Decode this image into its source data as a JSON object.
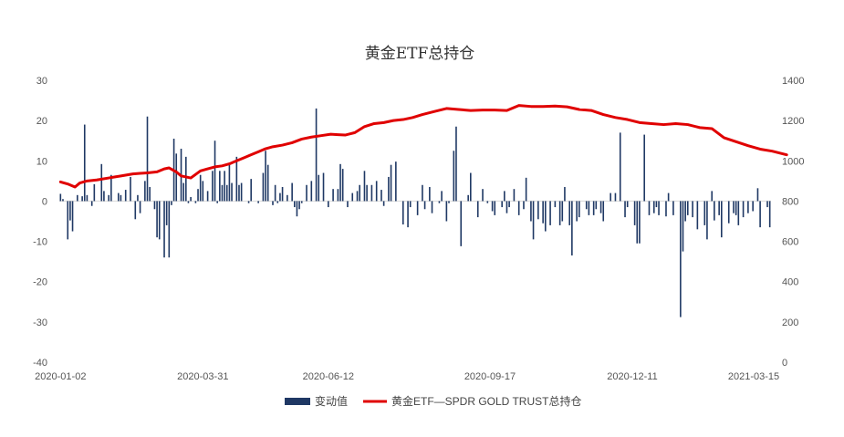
{
  "chart_data": {
    "type": "bar+line",
    "title": "黄金ETF总持仓",
    "xlabel": "",
    "ylabel_left": "",
    "ylabel_right": "",
    "x_tick_labels": [
      "2020-01-02",
      "2020-03-31",
      "2020-06-12",
      "2020-09-17",
      "2020-12-11",
      "2021-03-15"
    ],
    "x_tick_index": [
      0,
      59,
      111,
      178,
      237,
      301
    ],
    "y_left": {
      "min": -40,
      "max": 30,
      "ticks": [
        30,
        20,
        10,
        0,
        -10,
        -20,
        -30,
        -40
      ]
    },
    "y_right": {
      "min": 0,
      "max": 1400,
      "ticks": [
        1400,
        1200,
        1000,
        800,
        600,
        400,
        200,
        0
      ]
    },
    "grid": false,
    "legend_position": "bottom",
    "legend": [
      {
        "name": "变动值",
        "type": "bar",
        "color": "#1f3864"
      },
      {
        "name": "黄金ETF—SPDR GOLD TRUST总持仓",
        "type": "line",
        "color": "#e00000"
      }
    ],
    "series": [
      {
        "name": "变动值",
        "axis": "left",
        "values": [
          1.8,
          0.5,
          0,
          -9.5,
          -4.8,
          -7.5,
          0,
          1.5,
          0,
          1.2,
          19,
          1.5,
          0,
          -1.2,
          4.2,
          0,
          0,
          9.2,
          2.5,
          0,
          1.5,
          6.5,
          0,
          0,
          2,
          1.5,
          0,
          2.8,
          0,
          6,
          0,
          -4.5,
          1.5,
          -3,
          0,
          5,
          21,
          3.5,
          0,
          -2,
          -9,
          -9.5,
          0,
          -14,
          -6,
          -14,
          -1,
          15.5,
          11.8,
          0,
          13,
          4.5,
          11,
          -0.5,
          1,
          0,
          -0.5,
          3,
          6.5,
          5,
          0,
          2.5,
          0,
          7.5,
          15,
          -0.5,
          7.5,
          4,
          7.5,
          4,
          9,
          4.5,
          0,
          11,
          4,
          4.5,
          0,
          0,
          -0.5,
          5.5,
          0,
          0,
          -0.5,
          0,
          7,
          12.5,
          9,
          0,
          -1,
          4,
          -0.5,
          2,
          3.5,
          0,
          1.5,
          0,
          4.5,
          -1.5,
          -3.8,
          -2,
          -0.5,
          0,
          4,
          0,
          5,
          0,
          23,
          6.5,
          0,
          7,
          0,
          -1.5,
          0,
          3,
          0,
          3,
          9.2,
          8,
          0,
          -1.5,
          0,
          2,
          0,
          2.5,
          4,
          0,
          7.5,
          4,
          0,
          4,
          0,
          5,
          0,
          2.8,
          -1.2,
          0,
          6,
          9,
          0,
          9.8,
          0,
          0,
          -5.8,
          0,
          -6.5,
          -1.5,
          0,
          0,
          -3.5,
          0,
          4,
          -2,
          0,
          3.5,
          -3,
          0,
          0,
          -0.5,
          2.5,
          0,
          -5,
          -0.5,
          0,
          12.5,
          18.5,
          0,
          -11.2,
          0,
          0,
          1.5,
          7,
          0,
          0,
          -4,
          0,
          3,
          0,
          -0.5,
          0,
          -2.5,
          -3.5,
          0,
          0,
          -1.5,
          2.5,
          -3,
          -1.5,
          0,
          3,
          0,
          -3.5,
          0,
          -2,
          5.8,
          0,
          -5,
          -9.5,
          0,
          -4.5,
          0,
          -5.5,
          -7.5,
          0,
          -6,
          0,
          -1.5,
          0,
          -6,
          -5,
          3.5,
          0,
          -6,
          -13.5,
          0,
          -5,
          -4,
          0,
          0,
          -2,
          -3.5,
          0,
          -3.5,
          -2,
          0,
          -3,
          -5,
          0,
          0,
          2,
          0,
          2,
          0,
          17,
          0,
          -4,
          -1.5,
          0,
          0,
          -6,
          -10.5,
          -10.5,
          0,
          16.5,
          0,
          -3.5,
          0,
          -3,
          -1.5,
          -3.5,
          0,
          0,
          -3.8,
          2,
          0,
          -3.5,
          0,
          0,
          -28.8,
          -12.5,
          -5,
          -3.5,
          0,
          -4,
          0,
          -7,
          0,
          0,
          -6,
          -9.5,
          0,
          2.5,
          -4.8,
          0,
          -3.5,
          -9,
          0,
          0,
          -5.5,
          0,
          -3,
          -3.5,
          -6,
          0,
          -4,
          0,
          -3,
          0,
          -2.5,
          0,
          3.2,
          -6.5,
          0,
          0,
          -1.5,
          -6.5
        ]
      },
      {
        "name": "黄金ETF—SPDR GOLD TRUST总持仓",
        "axis": "right",
        "x": [
          0,
          3,
          6,
          8,
          11,
          15,
          20,
          25,
          30,
          33,
          36,
          40,
          43,
          45,
          48,
          50,
          54,
          58,
          61,
          64,
          67,
          70,
          73,
          76,
          79,
          82,
          85,
          88,
          92,
          96,
          100,
          104,
          108,
          112,
          115,
          118,
          122,
          126,
          130,
          134,
          138,
          142,
          146,
          150,
          155,
          160,
          165,
          170,
          175,
          180,
          185,
          190,
          195,
          200,
          205,
          210,
          215,
          220,
          225,
          230,
          235,
          240,
          245,
          250,
          255,
          260,
          265,
          270,
          275,
          280,
          285,
          290,
          295,
          301
        ],
        "values": [
          895,
          885,
          870,
          890,
          900,
          905,
          915,
          925,
          935,
          938,
          940,
          945,
          960,
          965,
          945,
          925,
          915,
          950,
          960,
          970,
          975,
          985,
          1000,
          1015,
          1030,
          1045,
          1060,
          1070,
          1078,
          1090,
          1108,
          1118,
          1125,
          1132,
          1130,
          1128,
          1140,
          1170,
          1185,
          1190,
          1200,
          1205,
          1215,
          1230,
          1245,
          1260,
          1255,
          1250,
          1252,
          1252,
          1250,
          1275,
          1270,
          1270,
          1272,
          1268,
          1255,
          1250,
          1230,
          1215,
          1205,
          1190,
          1185,
          1180,
          1185,
          1180,
          1165,
          1160,
          1115,
          1095,
          1075,
          1058,
          1048,
          1030
        ]
      }
    ]
  }
}
